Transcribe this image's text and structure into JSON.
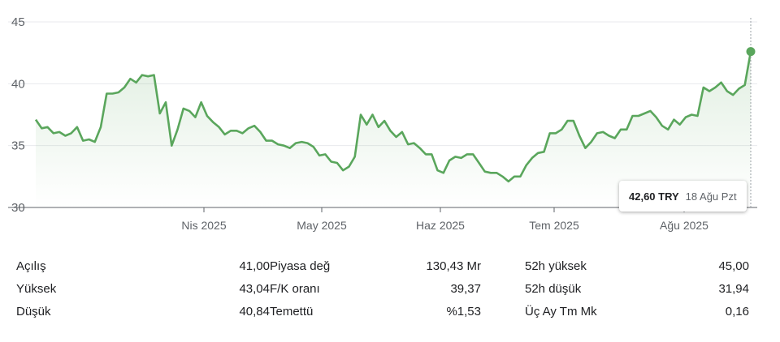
{
  "chart_data": {
    "type": "line",
    "currency": "TRY",
    "ylim": [
      30,
      45
    ],
    "y_ticks": [
      "45",
      "40",
      "35",
      "30"
    ],
    "x_tick_labels": [
      "Nis 2025",
      "May 2025",
      "Haz 2025",
      "Tem 2025",
      "Ağu 2025"
    ],
    "series_color": "#5aa65c",
    "y": [
      37.1,
      36.4,
      36.5,
      36.0,
      36.1,
      35.8,
      36.0,
      36.5,
      35.4,
      35.5,
      35.3,
      36.5,
      39.2,
      39.2,
      39.3,
      39.7,
      40.4,
      40.1,
      40.7,
      40.6,
      40.7,
      37.6,
      38.5,
      35.0,
      36.3,
      38.0,
      37.8,
      37.3,
      38.5,
      37.4,
      36.9,
      36.5,
      35.9,
      36.2,
      36.2,
      36.0,
      36.4,
      36.6,
      36.1,
      35.4,
      35.4,
      35.1,
      35.0,
      34.8,
      35.2,
      35.3,
      35.2,
      34.9,
      34.2,
      34.3,
      33.7,
      33.6,
      33.0,
      33.3,
      34.1,
      37.5,
      36.7,
      37.5,
      36.5,
      37.0,
      36.2,
      35.7,
      36.1,
      35.1,
      35.2,
      34.8,
      34.3,
      34.3,
      33.0,
      32.8,
      33.8,
      34.1,
      34.0,
      34.3,
      34.3,
      33.6,
      32.9,
      32.8,
      32.8,
      32.5,
      32.1,
      32.5,
      32.5,
      33.4,
      34.0,
      34.4,
      34.5,
      36.0,
      36.0,
      36.3,
      37.0,
      37.0,
      35.8,
      34.8,
      35.3,
      36.0,
      36.1,
      35.8,
      35.6,
      36.3,
      36.3,
      37.4,
      37.4,
      37.6,
      37.8,
      37.3,
      36.6,
      36.3,
      37.1,
      36.7,
      37.3,
      37.5,
      37.4,
      39.7,
      39.4,
      39.7,
      40.1,
      39.4,
      39.1,
      39.6,
      39.9,
      42.6
    ],
    "last_point": {
      "value": "42,60 TRY",
      "price": "42,60 TRY",
      "date": "18 Ağu Pzt"
    }
  },
  "stats": [
    [
      {
        "label": "Açılış",
        "value": "41,00"
      },
      {
        "label": "Piyasa değ",
        "value": "130,43 Mr"
      },
      {
        "label": "52h yüksek",
        "value": "45,00"
      }
    ],
    [
      {
        "label": "Yüksek",
        "value": "43,04"
      },
      {
        "label": "F/K oranı",
        "value": "39,37"
      },
      {
        "label": "52h düşük",
        "value": "31,94"
      }
    ],
    [
      {
        "label": "Düşük",
        "value": "40,84"
      },
      {
        "label": "Temettü",
        "value": "%1,53"
      },
      {
        "label": "Üç Ay Tm Mk",
        "value": "0,16"
      }
    ]
  ]
}
